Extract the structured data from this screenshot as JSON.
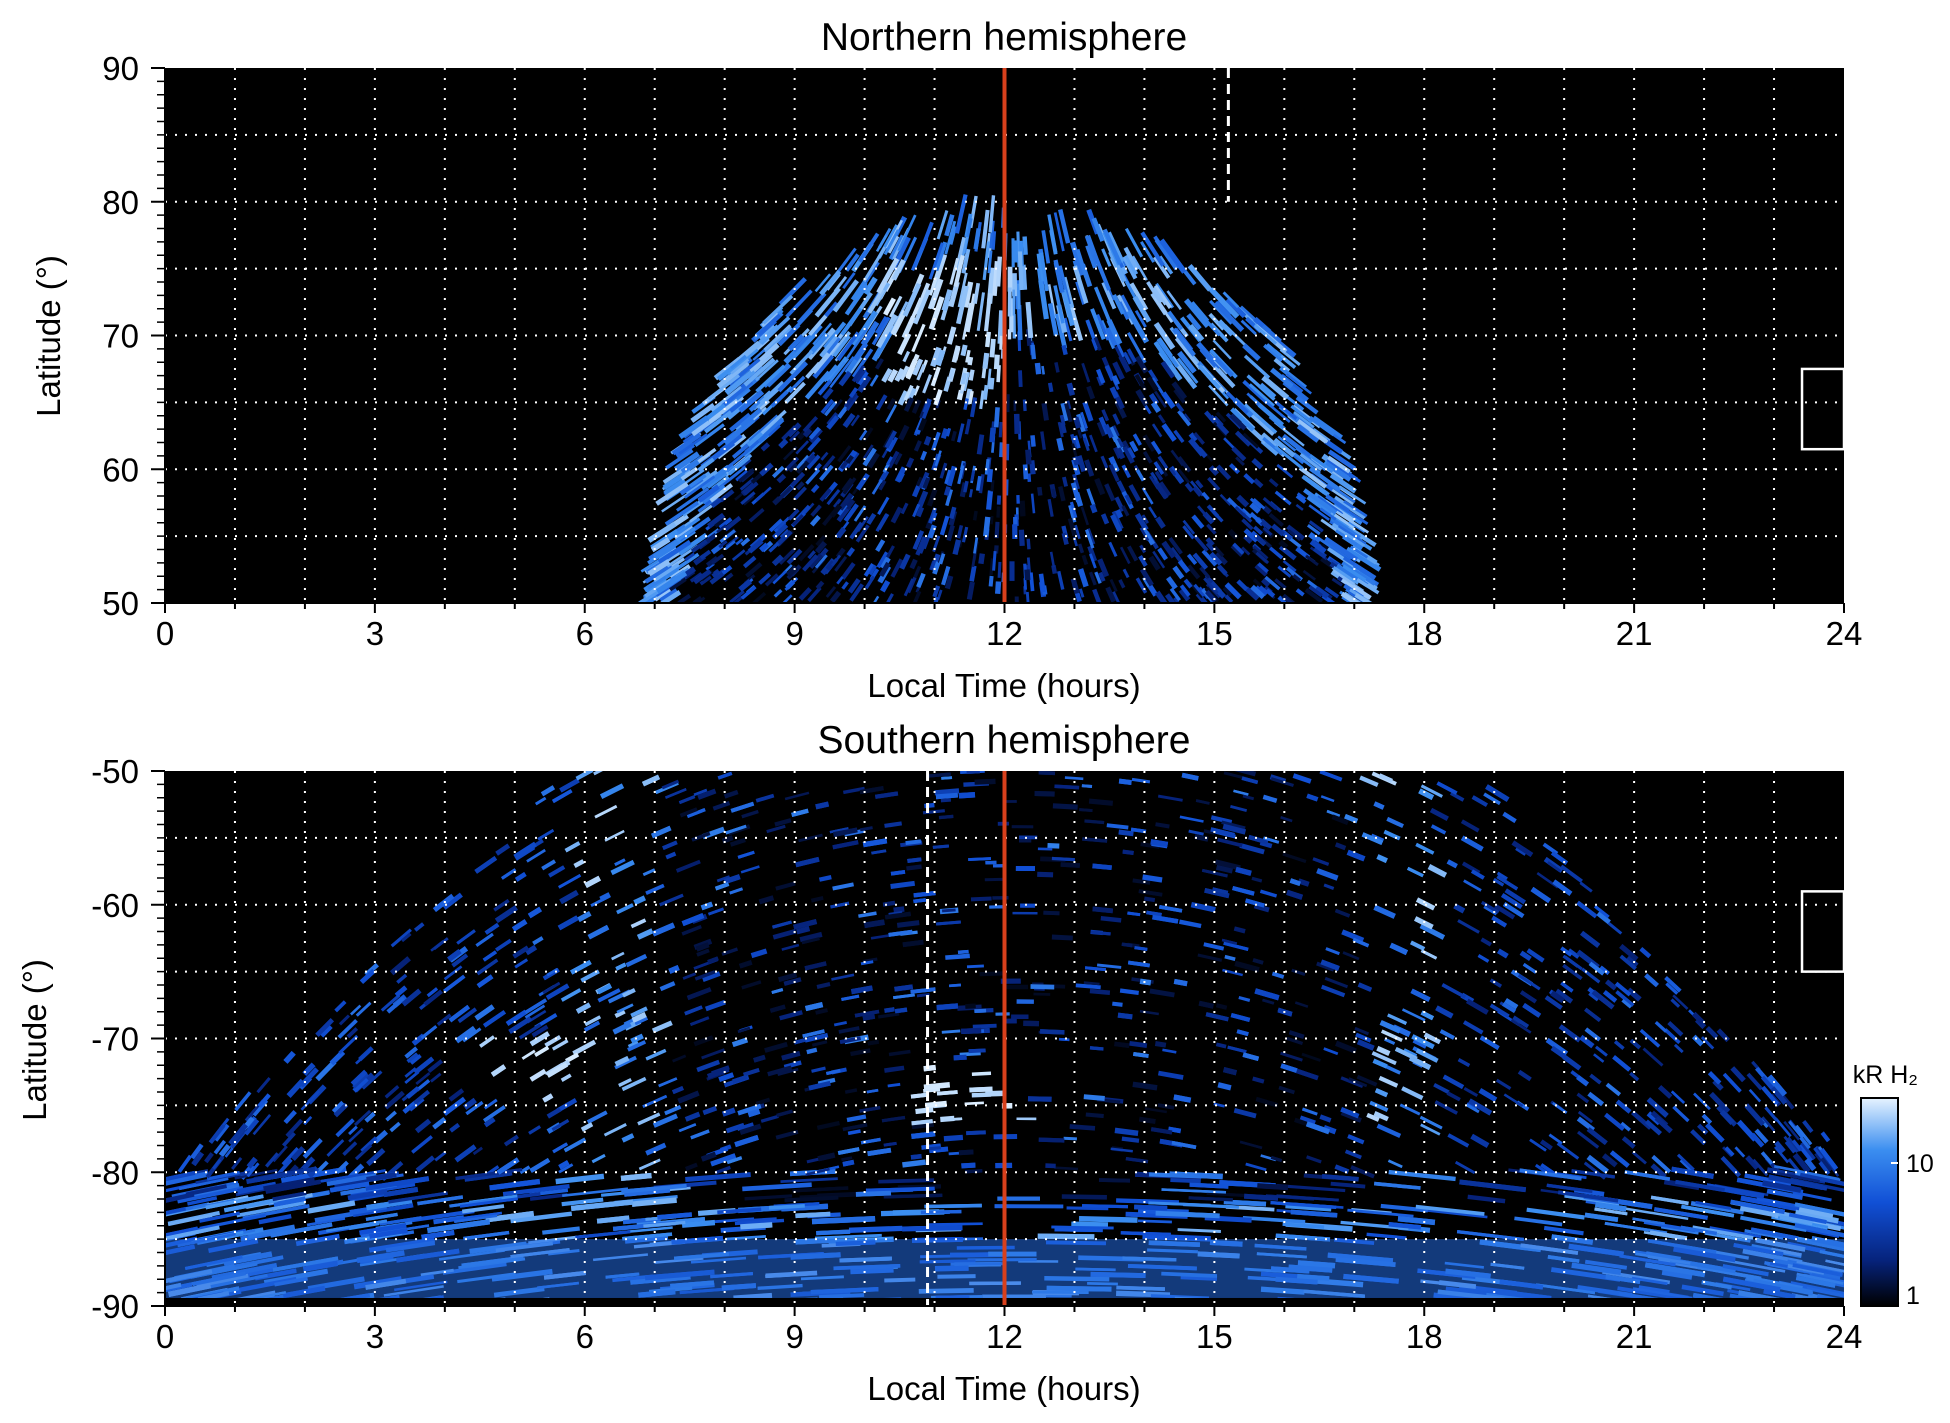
{
  "chart_data": [
    {
      "type": "heatmap",
      "title": "Northern hemisphere",
      "xlabel": "Local Time (hours)",
      "ylabel": "Latitude (°)",
      "xlim": [
        0,
        24
      ],
      "ylim": [
        50,
        90
      ],
      "x_ticks": [
        "0",
        "3",
        "6",
        "9",
        "12",
        "15",
        "18",
        "21",
        "24"
      ],
      "y_ticks": [
        "50",
        "60",
        "70",
        "80",
        "90"
      ],
      "grid": true,
      "background_color": "#000000",
      "colormap": [
        "#000000",
        "#06237c",
        "#1150d6",
        "#3b8ef0",
        "#d8ecff"
      ],
      "noon_line": {
        "x": 12,
        "color": "#d8401c"
      },
      "dashed_line": {
        "x": 15.2,
        "y_range": [
          80,
          90
        ]
      },
      "box": {
        "x": [
          23.4,
          24
        ],
        "y": [
          61.5,
          67.5
        ]
      },
      "emission_region": {
        "lt_range": [
          7.0,
          17.2
        ],
        "max_latitude": 79.5,
        "bright_band_latitudes": [
          66,
          79
        ],
        "hotspot": {
          "lt": 11.2,
          "latitude": 70
        }
      }
    },
    {
      "type": "heatmap",
      "title": "Southern hemisphere",
      "xlabel": "Local Time (hours)",
      "ylabel": "Latitude (°)",
      "xlim": [
        0,
        24
      ],
      "ylim": [
        -90,
        -50
      ],
      "x_ticks": [
        "0",
        "3",
        "6",
        "9",
        "12",
        "15",
        "18",
        "21",
        "24"
      ],
      "y_ticks": [
        "-50",
        "-60",
        "-70",
        "-80",
        "-90"
      ],
      "grid": true,
      "background_color": "#000000",
      "colormap": [
        "#000000",
        "#06237c",
        "#1150d6",
        "#3b8ef0",
        "#d8ecff"
      ],
      "noon_line": {
        "x": 12,
        "color": "#d8401c"
      },
      "dashed_line": {
        "x": 10.9,
        "y_range": [
          -90,
          -50
        ]
      },
      "box": {
        "x": [
          23.4,
          24
        ],
        "y": [
          -65,
          -59
        ]
      },
      "emission_region": {
        "lt_range": [
          0,
          24
        ],
        "top_lt_range": [
          5.6,
          18.8
        ],
        "bright_arc_lt": [
          6.5,
          17.5
        ],
        "hotspots": [
          {
            "lt": 5.5,
            "latitude": -72
          },
          {
            "lt": 11.5,
            "latitude": -74
          }
        ]
      },
      "colorbar": {
        "label": "kR H₂",
        "ticks": [
          "10",
          "1"
        ],
        "scale": "log"
      }
    }
  ]
}
